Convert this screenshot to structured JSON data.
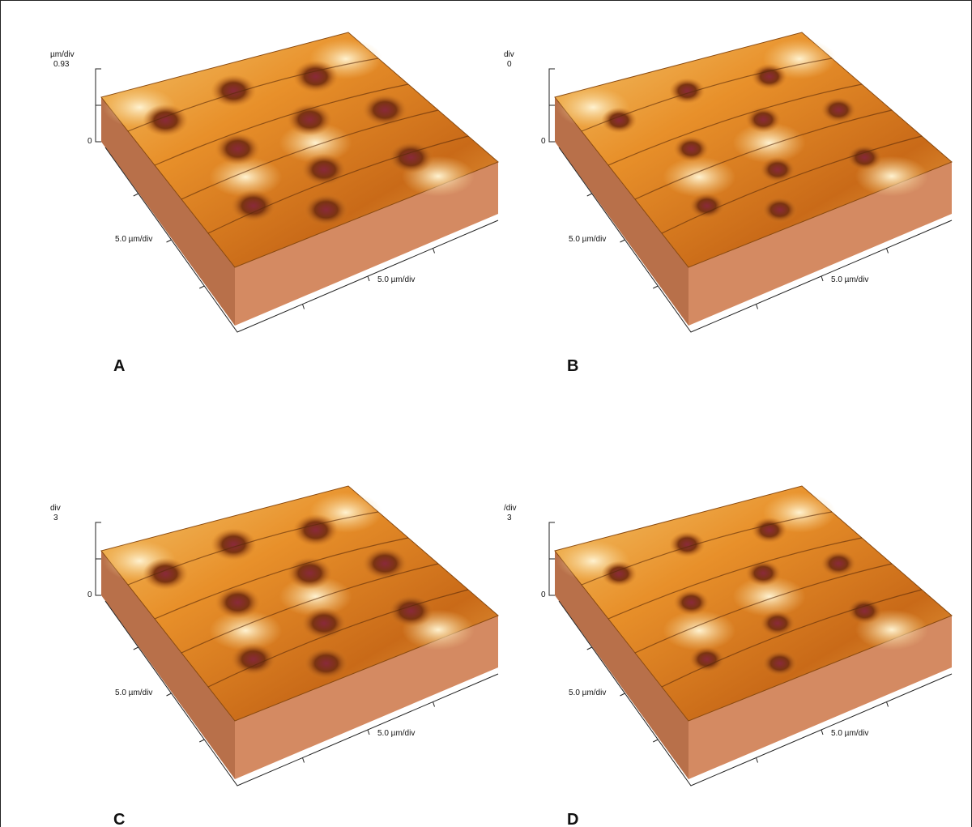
{
  "panels": [
    {
      "label": "A",
      "z_unit": "µm/div",
      "z_max": "0.93",
      "z_min": "0",
      "x_axis": "5.0 µm/div",
      "y_axis": "5.0 µm/div"
    },
    {
      "label": "B",
      "z_unit": "div",
      "z_max": "0",
      "z_min": "0",
      "x_axis": "5.0 µm/div",
      "y_axis": "5.0 µm/div"
    },
    {
      "label": "C",
      "z_unit": "div",
      "z_max": "3",
      "z_min": "0",
      "x_axis": "5.0 µm/div",
      "y_axis": "5.0 µm/div"
    },
    {
      "label": "D",
      "z_unit": "/div",
      "z_max": "3",
      "z_min": "0",
      "x_axis": "5.0 µm/div",
      "y_axis": "5.0 µm/div"
    }
  ]
}
